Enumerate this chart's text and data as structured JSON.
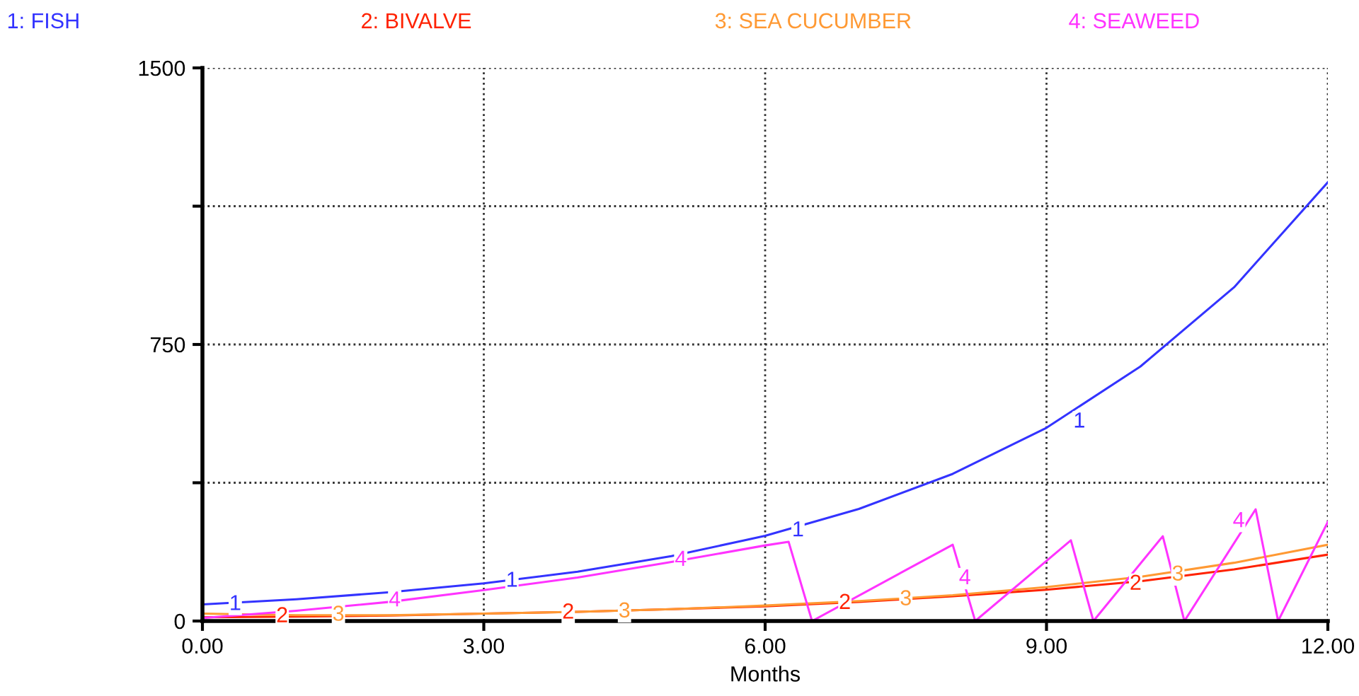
{
  "chart_data": {
    "type": "line",
    "xlabel": "Months",
    "xlim": [
      0,
      12
    ],
    "ylim": [
      0,
      1500
    ],
    "xticks": [
      {
        "value": 0,
        "label": "0.00"
      },
      {
        "value": 3,
        "label": "3.00"
      },
      {
        "value": 6,
        "label": "6.00"
      },
      {
        "value": 9,
        "label": "9.00"
      },
      {
        "value": 12,
        "label": "12.00"
      }
    ],
    "yticks": [
      0,
      {
        "value": 375,
        "label": null
      },
      750,
      {
        "value": 1125,
        "label": null
      },
      1500
    ],
    "grid": true,
    "legend": "top",
    "line_style": "solid",
    "marker": "none",
    "series": [
      {
        "name": "1: FISH",
        "color": "#3333ff",
        "x": [
          0,
          1,
          2,
          3,
          4,
          5,
          6,
          7,
          8,
          9,
          10,
          11,
          12
        ],
        "values": [
          45,
          59,
          78,
          102,
          134,
          176,
          231,
          304,
          399,
          524,
          690,
          905,
          1190
        ]
      },
      {
        "name": "2: BIVALVE",
        "color": "#ff2200",
        "x": [
          0,
          1,
          2,
          3,
          4,
          5,
          6,
          7,
          8,
          9,
          10,
          11,
          12
        ],
        "values": [
          10,
          12,
          15,
          20,
          25,
          32,
          40,
          52,
          67,
          85,
          108,
          140,
          180
        ]
      },
      {
        "name": "3: SEA CUCUMBER",
        "color": "#ff9933",
        "x": [
          0,
          1,
          2,
          3,
          4,
          5,
          6,
          7,
          8,
          9,
          10,
          11,
          12
        ],
        "values": [
          20,
          16,
          16,
          20,
          25,
          32,
          42,
          54,
          70,
          92,
          120,
          158,
          207
        ]
      },
      {
        "name": "4: SEAWEED",
        "color": "#ff33ff",
        "x": [
          0,
          1,
          2,
          3,
          4,
          5,
          6,
          6.25,
          6.5,
          8.0,
          8.24,
          9.26,
          9.5,
          10.24,
          10.47,
          11.23,
          11.47,
          12
        ],
        "values": [
          8,
          28,
          52,
          84,
          118,
          160,
          205,
          215,
          0,
          207,
          0,
          219,
          0,
          230,
          0,
          303,
          0,
          269
        ]
      }
    ],
    "annotations": [
      {
        "text": "1",
        "x": 0.35,
        "y": 45
      },
      {
        "text": "1",
        "x": 3.3,
        "y": 108
      },
      {
        "text": "1",
        "x": 6.35,
        "y": 245
      },
      {
        "text": "1",
        "x": 9.35,
        "y": 540
      },
      {
        "text": "2",
        "x": 0.85,
        "y": 12
      },
      {
        "text": "2",
        "x": 3.9,
        "y": 22
      },
      {
        "text": "2",
        "x": 6.85,
        "y": 48
      },
      {
        "text": "2",
        "x": 9.95,
        "y": 100
      },
      {
        "text": "3",
        "x": 1.45,
        "y": 16
      },
      {
        "text": "3",
        "x": 4.5,
        "y": 25
      },
      {
        "text": "3",
        "x": 7.5,
        "y": 58
      },
      {
        "text": "3",
        "x": 10.4,
        "y": 125
      },
      {
        "text": "4",
        "x": 2.05,
        "y": 55
      },
      {
        "text": "4",
        "x": 5.1,
        "y": 165
      },
      {
        "text": "4",
        "x": 8.13,
        "y": 115
      },
      {
        "text": "4",
        "x": 11.05,
        "y": 270
      }
    ]
  }
}
